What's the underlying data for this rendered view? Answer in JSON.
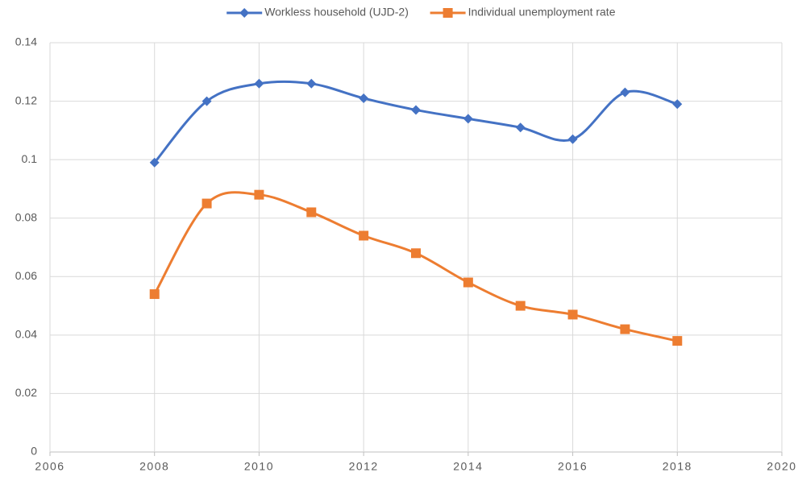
{
  "chart_data": {
    "type": "line",
    "smooth": true,
    "x": [
      2008,
      2009,
      2010,
      2011,
      2012,
      2013,
      2014,
      2015,
      2016,
      2017,
      2018
    ],
    "series": [
      {
        "name": "Workless household (UJD-2)",
        "color": "#4472c4",
        "marker": "diamond",
        "values": [
          0.099,
          0.12,
          0.126,
          0.126,
          0.121,
          0.117,
          0.114,
          0.111,
          0.107,
          0.123,
          0.119
        ]
      },
      {
        "name": "Individual unemployment rate",
        "color": "#ed7d31",
        "marker": "square",
        "values": [
          0.054,
          0.085,
          0.088,
          0.082,
          0.074,
          0.068,
          0.058,
          0.05,
          0.047,
          0.042,
          0.038
        ]
      }
    ],
    "xlim": [
      2006,
      2020
    ],
    "xticks": [
      2006,
      2008,
      2010,
      2012,
      2014,
      2016,
      2018,
      2020
    ],
    "ylim": [
      0,
      0.14
    ],
    "yticks": [
      0,
      0.02,
      0.04,
      0.06,
      0.08,
      0.1,
      0.12,
      0.14
    ],
    "grid": true,
    "legend": "top"
  }
}
